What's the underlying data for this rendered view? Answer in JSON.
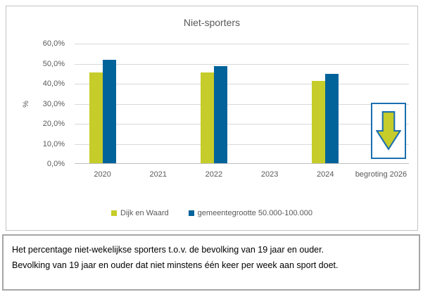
{
  "chart": {
    "title": "Niet-sporters",
    "y_axis_title": "%",
    "y_ticks": [
      "60,0%",
      "50,0%",
      "40,0%",
      "30,0%",
      "20,0%",
      "10,0%",
      "0,0%"
    ],
    "legend": [
      {
        "label": "Dijk en Waard",
        "color": "#C6CC29"
      },
      {
        "label": "gemeentegrootte 50.000-100.000",
        "color": "#02639B"
      }
    ],
    "forecast_indicator": {
      "category": "begroting 2026",
      "icon": "down-arrow",
      "fill": "#C6CC29",
      "stroke": "#1A6FAF",
      "border": "#1A6FAF"
    },
    "colors": {
      "gridline": "#D9D9D9",
      "axis_text": "#595959",
      "axis_line": "#BFBFBF"
    }
  },
  "chart_data": {
    "type": "bar",
    "title": "Niet-sporters",
    "categories": [
      "2020",
      "2021",
      "2022",
      "2023",
      "2024",
      "begroting 2026"
    ],
    "series": [
      {
        "name": "Dijk en Waard",
        "color": "#C6CC29",
        "values": [
          45.2,
          null,
          45.4,
          null,
          41.2,
          null
        ]
      },
      {
        "name": "gemeentegrootte 50.000-100.000",
        "color": "#02639B",
        "values": [
          51.5,
          null,
          48.5,
          null,
          44.7,
          null
        ]
      }
    ],
    "xlabel": "",
    "ylabel": "%",
    "ylim": [
      0,
      60
    ],
    "ytick_step": 10,
    "ytick_format": "#0,0%",
    "grid": true,
    "legend_position": "bottom",
    "annotations": [
      {
        "category": "begroting 2026",
        "symbol": "down-arrow-in-box",
        "meaning": "verwachte daling (begroting 2026)"
      }
    ]
  },
  "caption": {
    "line1": "Het percentage niet-wekelijkse sporters t.o.v. de bevolking van 19 jaar en ouder.",
    "line2": "Bevolking van 19 jaar en ouder dat niet minstens één keer per week aan sport doet."
  }
}
